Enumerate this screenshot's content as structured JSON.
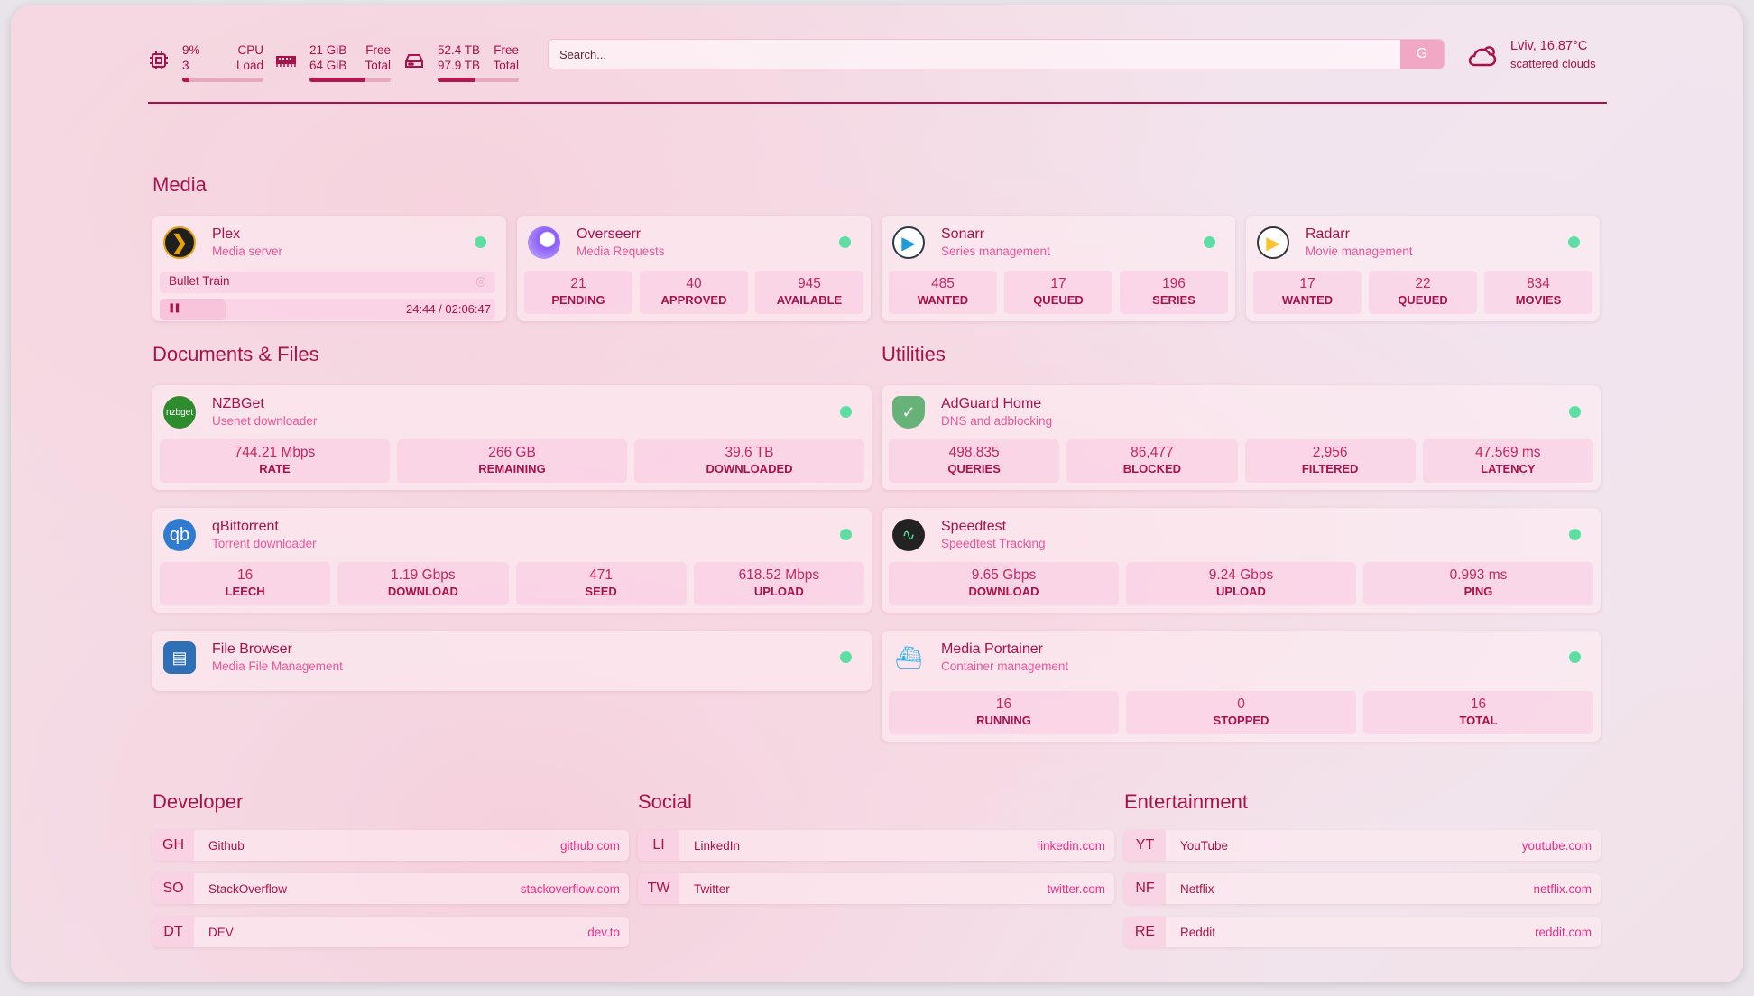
{
  "resources": {
    "cpu": {
      "icon": "cpu-icon",
      "value": "9%",
      "label": "CPU",
      "value2": "3",
      "label2": "Load",
      "usage_percent": 9
    },
    "memory": {
      "icon": "memory-icon",
      "value": "21 GiB",
      "label": "Free",
      "value2": "64 GiB",
      "label2": "Total",
      "usage_percent": 68
    },
    "disk": {
      "icon": "disk-icon",
      "value": "52.4 TB",
      "label": "Free",
      "value2": "97.9 TB",
      "label2": "Total",
      "usage_percent": 46
    }
  },
  "search": {
    "placeholder": "Search...",
    "provider_label": "G"
  },
  "weather": {
    "icon": "cloud-icon",
    "location_temp": "Lviv, 16.87°C",
    "condition": "scattered clouds"
  },
  "colors": {
    "accent": "#a8124a",
    "subtitle": "#e9559a",
    "status_ok": "#5ddfa2"
  },
  "sections": {
    "media": "Media",
    "documents": "Documents & Files",
    "utilities": "Utilities",
    "developer": "Developer",
    "social": "Social",
    "entertainment": "Entertainment"
  },
  "media": [
    {
      "name": "Plex",
      "desc": "Media server",
      "icon": "plex-icon",
      "now_playing": {
        "title": "Bullet Train",
        "time": "24:44 / 02:06:47",
        "progress_percent": 19.5,
        "state": "playing"
      }
    },
    {
      "name": "Overseerr",
      "desc": "Media Requests",
      "icon": "overseerr-icon",
      "stats": [
        {
          "v": "21",
          "l": "PENDING"
        },
        {
          "v": "40",
          "l": "APPROVED"
        },
        {
          "v": "945",
          "l": "AVAILABLE"
        }
      ]
    },
    {
      "name": "Sonarr",
      "desc": "Series management",
      "icon": "sonarr-icon",
      "stats": [
        {
          "v": "485",
          "l": "WANTED"
        },
        {
          "v": "17",
          "l": "QUEUED"
        },
        {
          "v": "196",
          "l": "SERIES"
        }
      ]
    },
    {
      "name": "Radarr",
      "desc": "Movie management",
      "icon": "radarr-icon",
      "stats": [
        {
          "v": "17",
          "l": "WANTED"
        },
        {
          "v": "22",
          "l": "QUEUED"
        },
        {
          "v": "834",
          "l": "MOVIES"
        }
      ]
    }
  ],
  "documents": [
    {
      "name": "NZBGet",
      "desc": "Usenet downloader",
      "icon": "nzbget-icon",
      "icon_text": "nzbget",
      "stats": [
        {
          "v": "744.21 Mbps",
          "l": "RATE"
        },
        {
          "v": "266 GB",
          "l": "REMAINING"
        },
        {
          "v": "39.6 TB",
          "l": "DOWNLOADED"
        }
      ]
    },
    {
      "name": "qBittorrent",
      "desc": "Torrent downloader",
      "icon": "qbittorrent-icon",
      "icon_text": "qb",
      "stats": [
        {
          "v": "16",
          "l": "LEECH"
        },
        {
          "v": "1.19 Gbps",
          "l": "DOWNLOAD"
        },
        {
          "v": "471",
          "l": "SEED"
        },
        {
          "v": "618.52 Mbps",
          "l": "UPLOAD"
        }
      ]
    },
    {
      "name": "File Browser",
      "desc": "Media File Management",
      "icon": "filebrowser-icon"
    }
  ],
  "utilities": [
    {
      "name": "AdGuard Home",
      "desc": "DNS and adblocking",
      "icon": "adguard-icon",
      "stats": [
        {
          "v": "498,835",
          "l": "QUERIES"
        },
        {
          "v": "86,477",
          "l": "BLOCKED"
        },
        {
          "v": "2,956",
          "l": "FILTERED"
        },
        {
          "v": "47.569 ms",
          "l": "LATENCY"
        }
      ]
    },
    {
      "name": "Speedtest",
      "desc": "Speedtest Tracking",
      "icon": "speedtest-icon",
      "stats": [
        {
          "v": "9.65 Gbps",
          "l": "DOWNLOAD"
        },
        {
          "v": "9.24 Gbps",
          "l": "UPLOAD"
        },
        {
          "v": "0.993 ms",
          "l": "PING"
        }
      ]
    },
    {
      "name": "Media Portainer",
      "desc": "Container management",
      "icon": "portainer-icon",
      "stats": [
        {
          "v": "16",
          "l": "RUNNING"
        },
        {
          "v": "0",
          "l": "STOPPED"
        },
        {
          "v": "16",
          "l": "TOTAL"
        }
      ]
    }
  ],
  "bookmarks": {
    "developer": [
      {
        "abbr": "GH",
        "name": "Github",
        "url": "github.com"
      },
      {
        "abbr": "SO",
        "name": "StackOverflow",
        "url": "stackoverflow.com"
      },
      {
        "abbr": "DT",
        "name": "DEV",
        "url": "dev.to"
      }
    ],
    "social": [
      {
        "abbr": "LI",
        "name": "LinkedIn",
        "url": "linkedin.com"
      },
      {
        "abbr": "TW",
        "name": "Twitter",
        "url": "twitter.com"
      }
    ],
    "entertainment": [
      {
        "abbr": "YT",
        "name": "YouTube",
        "url": "youtube.com"
      },
      {
        "abbr": "NF",
        "name": "Netflix",
        "url": "netflix.com"
      },
      {
        "abbr": "RE",
        "name": "Reddit",
        "url": "reddit.com"
      }
    ]
  }
}
